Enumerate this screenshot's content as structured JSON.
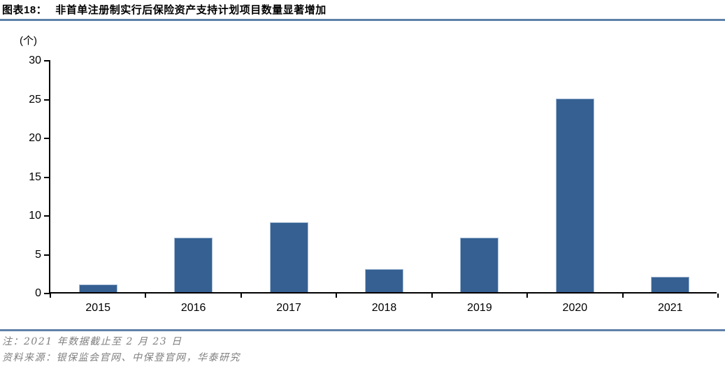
{
  "header": {
    "label": "图表18：",
    "title": "非首单注册制实行后保险资产支持计划项目数量显著增加"
  },
  "chart_data": {
    "type": "bar",
    "title": "非首单注册制实行后保险资产支持计划项目数量显著增加",
    "unit_label": "(个)",
    "categories": [
      "2015",
      "2016",
      "2017",
      "2018",
      "2019",
      "2020",
      "2021"
    ],
    "values": [
      1,
      7,
      9,
      3,
      7,
      25,
      2
    ],
    "xlabel": "",
    "ylabel": "(个)",
    "ylim": [
      0,
      30
    ],
    "yticks": [
      0,
      5,
      10,
      15,
      20,
      25,
      30
    ],
    "grid": false,
    "legend": "none",
    "bar_color": "#366092",
    "bar_border_color": "#A9BFD8"
  },
  "footer": {
    "note": "注：2021 年数据截止至 2 月 23 日",
    "source": "资料来源：银保监会官网、中保登官网，华泰研究"
  },
  "colors": {
    "divider": "#5E81A9",
    "note_text": "#808080",
    "axis": "#000000",
    "background": "#FFFFFF"
  }
}
